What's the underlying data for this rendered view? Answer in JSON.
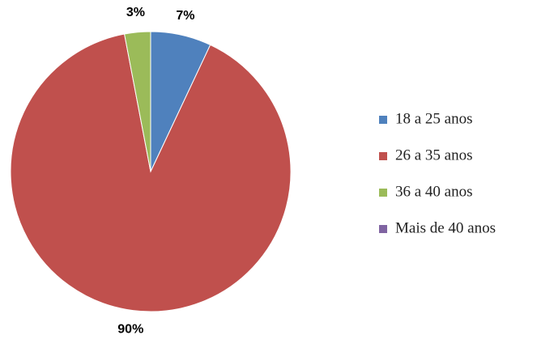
{
  "chart_data": {
    "type": "pie",
    "categories": [
      "18 a 25 anos",
      "26 a 35 anos",
      "36 a 40 anos",
      "Mais de 40 anos"
    ],
    "series": [
      {
        "values": [
          7,
          90,
          3,
          0
        ],
        "value_labels": [
          "7%",
          "90%",
          "3%",
          null
        ],
        "colors": [
          "#4f81bd",
          "#c0504d",
          "#9bbb59",
          "#8064a2"
        ]
      }
    ],
    "legend": "right"
  }
}
